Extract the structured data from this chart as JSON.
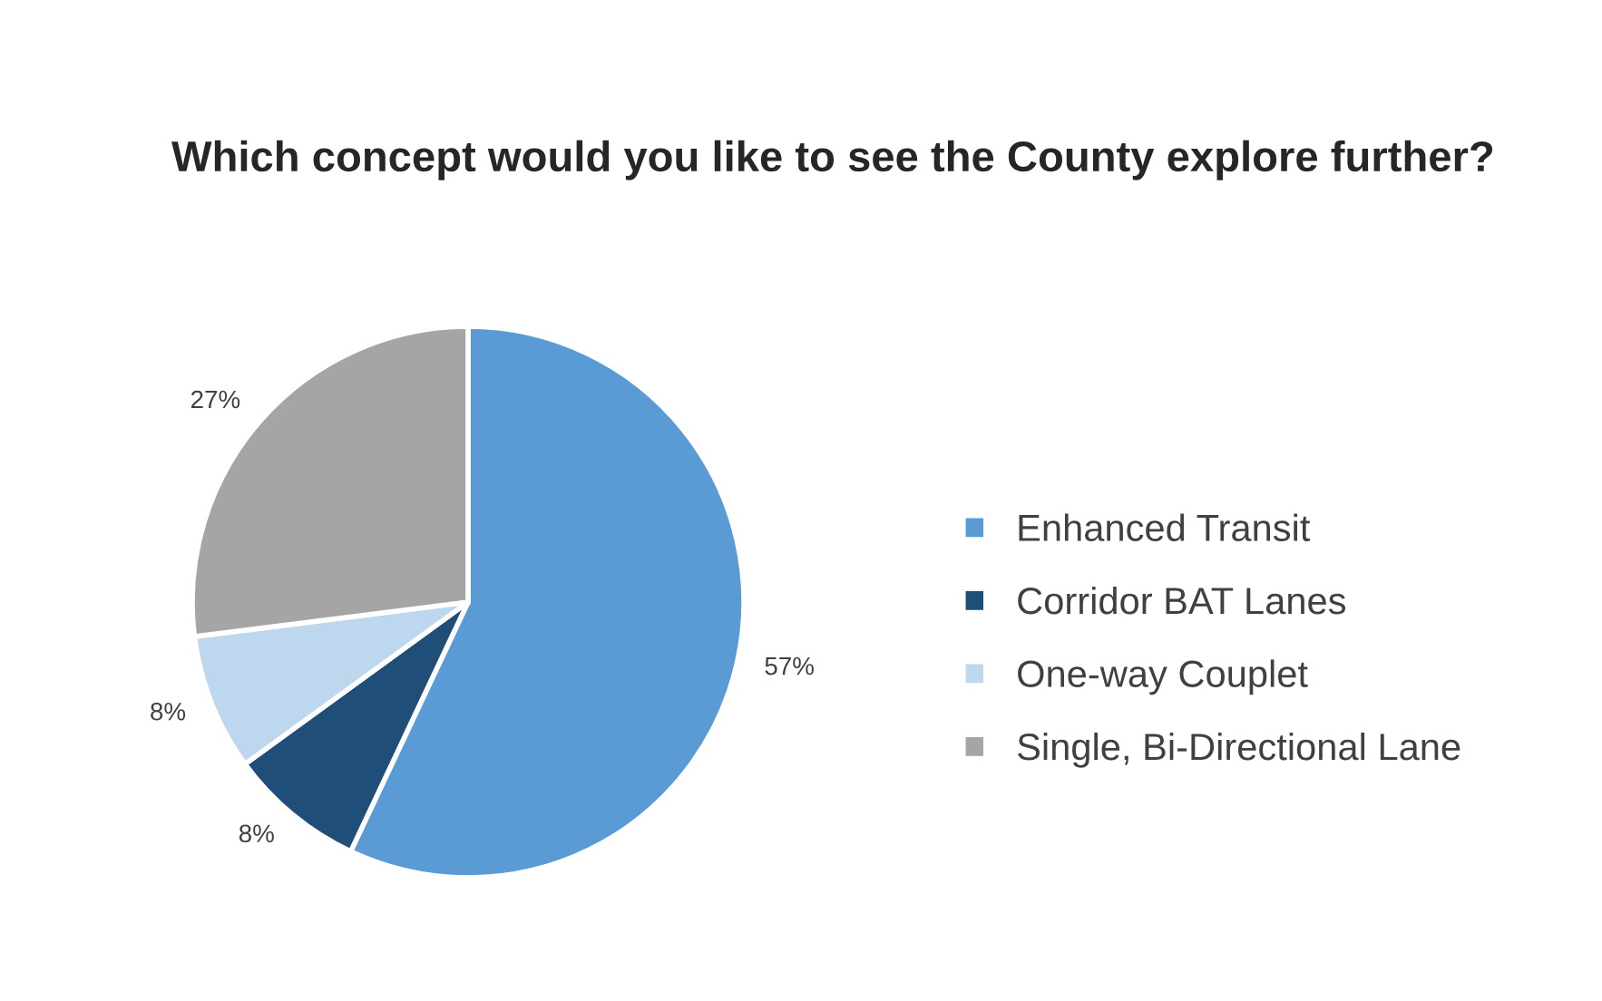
{
  "chart_data": {
    "type": "pie",
    "title": "Which concept would you like to see the County explore further?",
    "categories": [
      "Enhanced Transit",
      "Corridor BAT Lanes",
      "One-way Couplet",
      "Single, Bi-Directional Lane"
    ],
    "values": [
      57,
      8,
      8,
      27
    ],
    "value_labels": [
      "57%",
      "8%",
      "8%",
      "27%"
    ],
    "colors": [
      "#5b9bd5",
      "#1f4e79",
      "#bdd7ee",
      "#a5a5a5"
    ],
    "legend": "right"
  }
}
